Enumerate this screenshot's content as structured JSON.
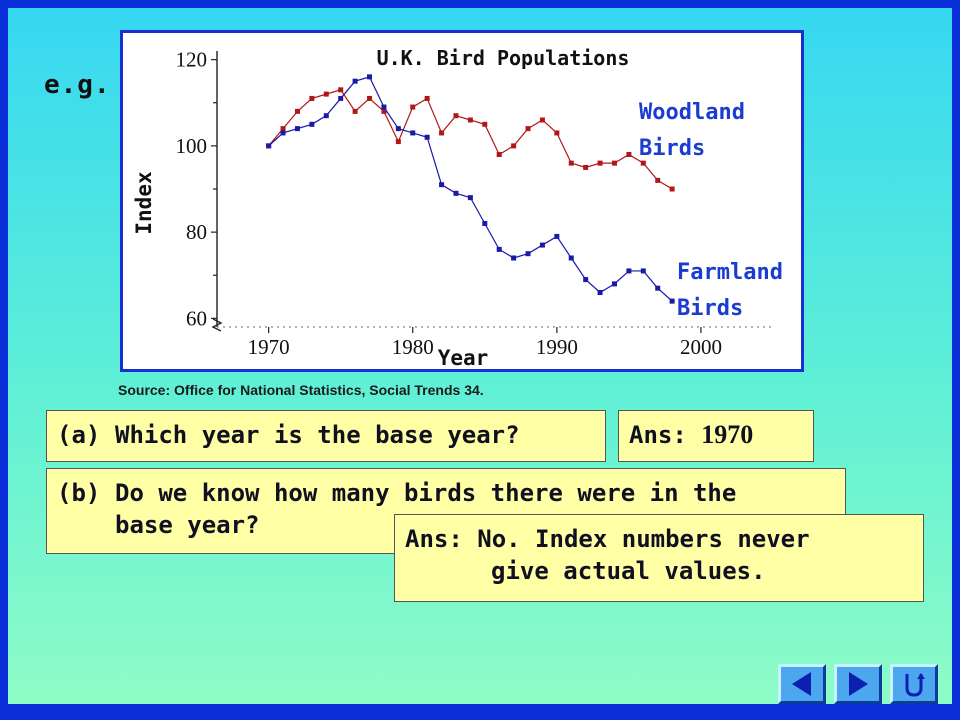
{
  "slide": {
    "eg_label": "e.g.",
    "source": "Source: Office for National Statistics, Social Trends 34."
  },
  "chart_data": {
    "type": "line",
    "title": "U.K. Bird Populations",
    "xlabel": "Year",
    "ylabel": "Index",
    "xlim": [
      1966,
      2005
    ],
    "ylim": [
      58,
      122
    ],
    "xticks": [
      1970,
      1980,
      1990,
      2000
    ],
    "yticks": [
      60,
      80,
      100,
      120
    ],
    "x": [
      1970,
      1971,
      1972,
      1973,
      1974,
      1975,
      1976,
      1977,
      1978,
      1979,
      1980,
      1981,
      1982,
      1983,
      1984,
      1985,
      1986,
      1987,
      1988,
      1989,
      1990,
      1991,
      1992,
      1993,
      1994,
      1995,
      1996,
      1997,
      1998
    ],
    "series": [
      {
        "name": "Woodland Birds",
        "label_lines": [
          "Woodland",
          "Birds"
        ],
        "color": "#b01818",
        "values": [
          100,
          104,
          108,
          111,
          112,
          113,
          108,
          111,
          108,
          101,
          109,
          111,
          103,
          107,
          106,
          105,
          98,
          100,
          104,
          106,
          103,
          96,
          95,
          96,
          96,
          98,
          96,
          92,
          90
        ]
      },
      {
        "name": "Farmland Birds",
        "label_lines": [
          "Farmland",
          "Birds"
        ],
        "color": "#1a1aa8",
        "values": [
          100,
          103,
          104,
          105,
          107,
          111,
          115,
          116,
          109,
          104,
          103,
          102,
          91,
          89,
          88,
          82,
          76,
          74,
          75,
          77,
          79,
          74,
          69,
          66,
          68,
          71,
          71,
          67,
          64
        ]
      }
    ]
  },
  "questions": {
    "a": {
      "label": "(a)",
      "text": "Which year is the base year?"
    },
    "a_answer": {
      "prefix": "Ans:",
      "value": "1970"
    },
    "b": {
      "label": "(b)",
      "line1": "Do we know how many birds there were in the",
      "line2": "base year?"
    },
    "b_answer": {
      "prefix": "Ans:",
      "line1": "No. Index numbers never",
      "line2": "give actual values."
    }
  },
  "nav": {
    "icons": [
      "back-arrow-icon",
      "forward-arrow-icon",
      "return-icon"
    ],
    "icon_color": "#0c1fb0"
  }
}
